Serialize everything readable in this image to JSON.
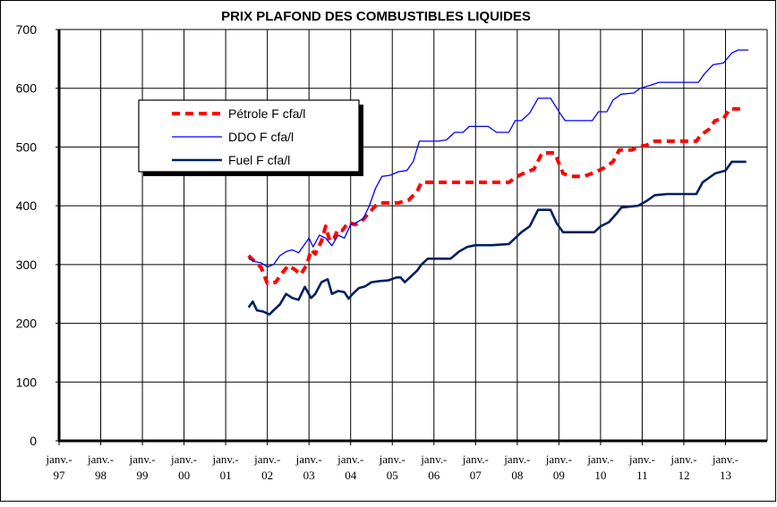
{
  "chart_data": {
    "type": "line",
    "title": "PRIX PLAFOND DES COMBUSTIBLES LIQUIDES",
    "xlabel": "",
    "ylabel": "",
    "ylim": [
      0,
      700
    ],
    "yticks": [
      0,
      100,
      200,
      300,
      400,
      500,
      600,
      700
    ],
    "xlim": [
      1997,
      2014
    ],
    "xtick_labels": [
      {
        "line1": "janv.-",
        "line2": "97"
      },
      {
        "line1": "janv.-",
        "line2": "98"
      },
      {
        "line1": "janv.-",
        "line2": "99"
      },
      {
        "line1": "janv.-",
        "line2": "00"
      },
      {
        "line1": "janv.-",
        "line2": "01"
      },
      {
        "line1": "janv.-",
        "line2": "02"
      },
      {
        "line1": "janv.-",
        "line2": "03"
      },
      {
        "line1": "janv.-",
        "line2": "04"
      },
      {
        "line1": "janv.-",
        "line2": "05"
      },
      {
        "line1": "janv.-",
        "line2": "06"
      },
      {
        "line1": "janv.-",
        "line2": "07"
      },
      {
        "line1": "janv.-",
        "line2": "08"
      },
      {
        "line1": "janv.-",
        "line2": "09"
      },
      {
        "line1": "janv.-",
        "line2": "10"
      },
      {
        "line1": "janv.-",
        "line2": "11"
      },
      {
        "line1": "janv.-",
        "line2": "12"
      },
      {
        "line1": "janv.-",
        "line2": "13"
      }
    ],
    "grid": true,
    "legend_position": "upper-left",
    "series": [
      {
        "name": "Pétrole F cfa/l",
        "color": "#ff0000",
        "style": "dashed",
        "points": [
          [
            2001.55,
            315
          ],
          [
            2001.7,
            305
          ],
          [
            2001.85,
            295
          ],
          [
            2002.0,
            268
          ],
          [
            2002.2,
            270
          ],
          [
            2002.35,
            285
          ],
          [
            2002.5,
            298
          ],
          [
            2002.65,
            292
          ],
          [
            2002.8,
            283
          ],
          [
            2002.95,
            300
          ],
          [
            2003.05,
            325
          ],
          [
            2003.15,
            318
          ],
          [
            2003.3,
            340
          ],
          [
            2003.4,
            365
          ],
          [
            2003.5,
            340
          ],
          [
            2003.6,
            345
          ],
          [
            2003.7,
            360
          ],
          [
            2003.8,
            358
          ],
          [
            2003.95,
            372
          ],
          [
            2004.1,
            368
          ],
          [
            2004.25,
            372
          ],
          [
            2004.4,
            385
          ],
          [
            2004.6,
            400
          ],
          [
            2004.7,
            405
          ],
          [
            2005.0,
            405
          ],
          [
            2005.15,
            405
          ],
          [
            2005.4,
            410
          ],
          [
            2005.6,
            425
          ],
          [
            2005.7,
            440
          ],
          [
            2006.0,
            440
          ],
          [
            2006.4,
            440
          ],
          [
            2006.9,
            440
          ],
          [
            2007.4,
            440
          ],
          [
            2007.8,
            440
          ],
          [
            2008.0,
            450
          ],
          [
            2008.2,
            457
          ],
          [
            2008.4,
            462
          ],
          [
            2008.6,
            490
          ],
          [
            2008.9,
            490
          ],
          [
            2009.1,
            455
          ],
          [
            2009.3,
            450
          ],
          [
            2009.6,
            450
          ],
          [
            2009.9,
            458
          ],
          [
            2010.1,
            465
          ],
          [
            2010.3,
            475
          ],
          [
            2010.45,
            495
          ],
          [
            2010.75,
            495
          ],
          [
            2010.9,
            500
          ],
          [
            2011.1,
            503
          ],
          [
            2011.3,
            510
          ],
          [
            2011.6,
            510
          ],
          [
            2012.0,
            510
          ],
          [
            2012.3,
            510
          ],
          [
            2012.4,
            520
          ],
          [
            2012.6,
            530
          ],
          [
            2012.75,
            545
          ],
          [
            2012.95,
            548
          ],
          [
            2013.1,
            565
          ],
          [
            2013.35,
            565
          ]
        ]
      },
      {
        "name": "DDO F cfa/l",
        "color": "#0000ff",
        "style": "solid",
        "points": [
          [
            2001.55,
            310
          ],
          [
            2001.7,
            305
          ],
          [
            2001.85,
            303
          ],
          [
            2002.0,
            296
          ],
          [
            2002.15,
            300
          ],
          [
            2002.3,
            315
          ],
          [
            2002.45,
            322
          ],
          [
            2002.6,
            325
          ],
          [
            2002.75,
            320
          ],
          [
            2002.85,
            330
          ],
          [
            2003.0,
            345
          ],
          [
            2003.1,
            330
          ],
          [
            2003.25,
            350
          ],
          [
            2003.4,
            345
          ],
          [
            2003.55,
            332
          ],
          [
            2003.7,
            350
          ],
          [
            2003.85,
            345
          ],
          [
            2004.0,
            368
          ],
          [
            2004.15,
            372
          ],
          [
            2004.3,
            378
          ],
          [
            2004.45,
            400
          ],
          [
            2004.6,
            430
          ],
          [
            2004.75,
            450
          ],
          [
            2004.95,
            452
          ],
          [
            2005.15,
            458
          ],
          [
            2005.35,
            460
          ],
          [
            2005.5,
            475
          ],
          [
            2005.65,
            510
          ],
          [
            2005.85,
            510
          ],
          [
            2006.1,
            510
          ],
          [
            2006.3,
            512
          ],
          [
            2006.5,
            525
          ],
          [
            2006.7,
            525
          ],
          [
            2006.85,
            535
          ],
          [
            2007.1,
            535
          ],
          [
            2007.3,
            535
          ],
          [
            2007.5,
            525
          ],
          [
            2007.8,
            525
          ],
          [
            2007.95,
            545
          ],
          [
            2008.1,
            545
          ],
          [
            2008.3,
            558
          ],
          [
            2008.5,
            583
          ],
          [
            2008.8,
            583
          ],
          [
            2009.05,
            555
          ],
          [
            2009.15,
            545
          ],
          [
            2009.4,
            545
          ],
          [
            2009.8,
            545
          ],
          [
            2009.95,
            560
          ],
          [
            2010.15,
            560
          ],
          [
            2010.3,
            580
          ],
          [
            2010.5,
            590
          ],
          [
            2010.8,
            592
          ],
          [
            2010.95,
            600
          ],
          [
            2011.2,
            605
          ],
          [
            2011.4,
            610
          ],
          [
            2011.8,
            610
          ],
          [
            2012.1,
            610
          ],
          [
            2012.35,
            610
          ],
          [
            2012.5,
            625
          ],
          [
            2012.7,
            640
          ],
          [
            2012.95,
            643
          ],
          [
            2013.15,
            660
          ],
          [
            2013.3,
            665
          ],
          [
            2013.55,
            665
          ]
        ]
      },
      {
        "name": "Fuel F cfa/l",
        "color": "#002060",
        "style": "solid",
        "points": [
          [
            2001.55,
            227
          ],
          [
            2001.65,
            237
          ],
          [
            2001.75,
            222
          ],
          [
            2001.9,
            220
          ],
          [
            2002.05,
            215
          ],
          [
            2002.15,
            222
          ],
          [
            2002.3,
            232
          ],
          [
            2002.45,
            250
          ],
          [
            2002.6,
            243
          ],
          [
            2002.75,
            240
          ],
          [
            2002.9,
            262
          ],
          [
            2003.05,
            243
          ],
          [
            2003.15,
            250
          ],
          [
            2003.3,
            270
          ],
          [
            2003.45,
            275
          ],
          [
            2003.55,
            250
          ],
          [
            2003.7,
            255
          ],
          [
            2003.85,
            253
          ],
          [
            2003.95,
            242
          ],
          [
            2004.05,
            250
          ],
          [
            2004.2,
            260
          ],
          [
            2004.35,
            263
          ],
          [
            2004.5,
            270
          ],
          [
            2004.7,
            272
          ],
          [
            2004.9,
            273
          ],
          [
            2005.1,
            278
          ],
          [
            2005.2,
            278
          ],
          [
            2005.3,
            270
          ],
          [
            2005.45,
            280
          ],
          [
            2005.6,
            290
          ],
          [
            2005.7,
            300
          ],
          [
            2005.85,
            310
          ],
          [
            2006.1,
            310
          ],
          [
            2006.4,
            310
          ],
          [
            2006.6,
            322
          ],
          [
            2006.8,
            330
          ],
          [
            2007.0,
            333
          ],
          [
            2007.4,
            333
          ],
          [
            2007.8,
            335
          ],
          [
            2007.95,
            345
          ],
          [
            2008.1,
            355
          ],
          [
            2008.3,
            365
          ],
          [
            2008.5,
            393
          ],
          [
            2008.8,
            393
          ],
          [
            2008.95,
            370
          ],
          [
            2009.1,
            355
          ],
          [
            2009.5,
            355
          ],
          [
            2009.85,
            355
          ],
          [
            2010.0,
            365
          ],
          [
            2010.2,
            372
          ],
          [
            2010.4,
            388
          ],
          [
            2010.5,
            397
          ],
          [
            2010.9,
            400
          ],
          [
            2011.1,
            408
          ],
          [
            2011.3,
            418
          ],
          [
            2011.6,
            420
          ],
          [
            2012.0,
            420
          ],
          [
            2012.3,
            420
          ],
          [
            2012.45,
            440
          ],
          [
            2012.75,
            455
          ],
          [
            2013.0,
            460
          ],
          [
            2013.15,
            475
          ],
          [
            2013.5,
            475
          ]
        ]
      }
    ]
  }
}
